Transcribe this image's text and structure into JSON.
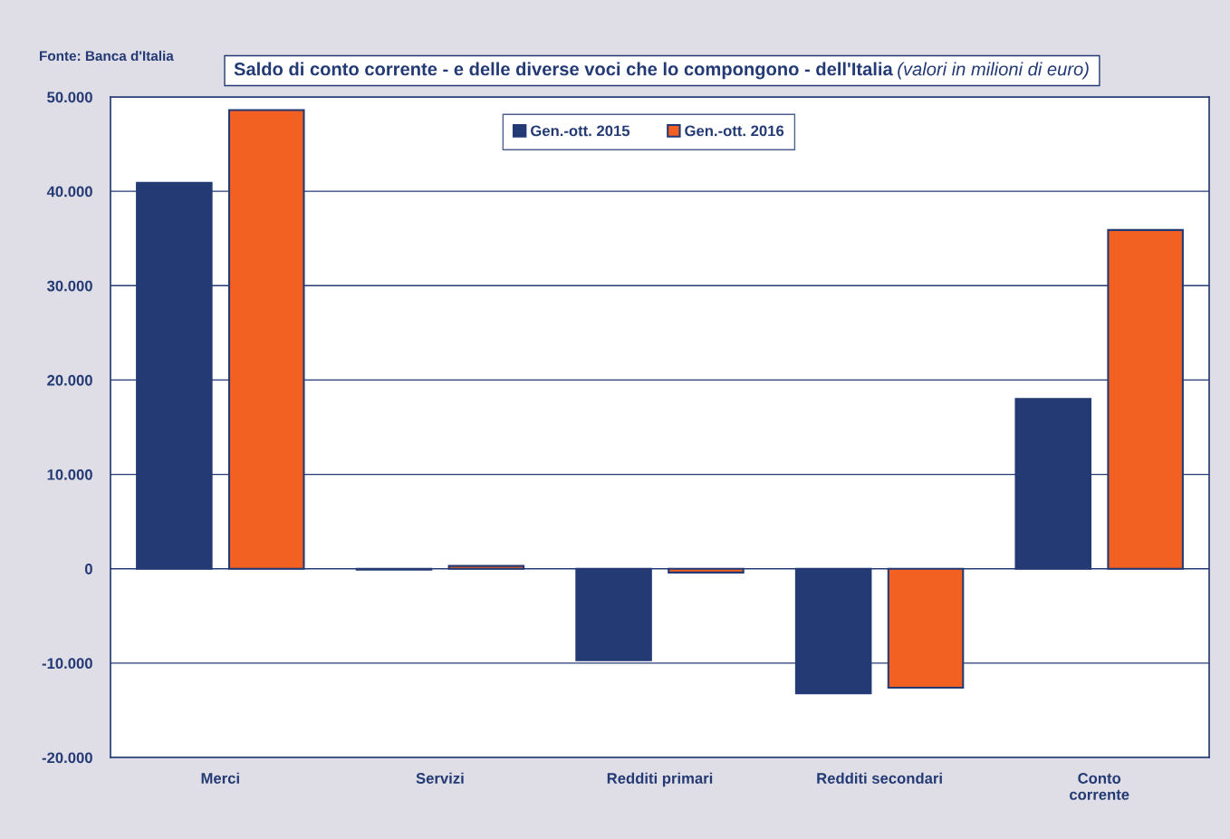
{
  "chart_data": {
    "type": "bar",
    "title": "Saldo di conto corrente - e delle diverse voci che lo compongono - dell'Italia",
    "subtitle": "(valori in milioni di euro)",
    "annotations": [
      "Fonte: Banca d'Italia"
    ],
    "categories": [
      "Merci",
      "Servizi",
      "Redditi primari",
      "Redditi secondari",
      "Conto\ncorrente"
    ],
    "series": [
      {
        "name": "Gen.-ott. 2015",
        "color": "#233a74",
        "values": [
          40900,
          -100,
          -9700,
          -13200,
          18000
        ]
      },
      {
        "name": "Gen.-ott. 2016",
        "color": "#f26122",
        "values": [
          48600,
          300,
          -400,
          -12600,
          35900
        ]
      }
    ],
    "ylim": [
      -20000,
      50000
    ],
    "yticks": [
      {
        "value": -20000,
        "label": "-20.000"
      },
      {
        "value": -10000,
        "label": "-10.000"
      },
      0,
      {
        "value": 10000,
        "label": "10.000"
      },
      {
        "value": 20000,
        "label": "20.000"
      },
      {
        "value": 30000,
        "label": "30.000"
      },
      {
        "value": 40000,
        "label": "40.000"
      },
      {
        "value": 50000,
        "label": "50.000"
      }
    ],
    "grid": "y",
    "legend": "top"
  }
}
